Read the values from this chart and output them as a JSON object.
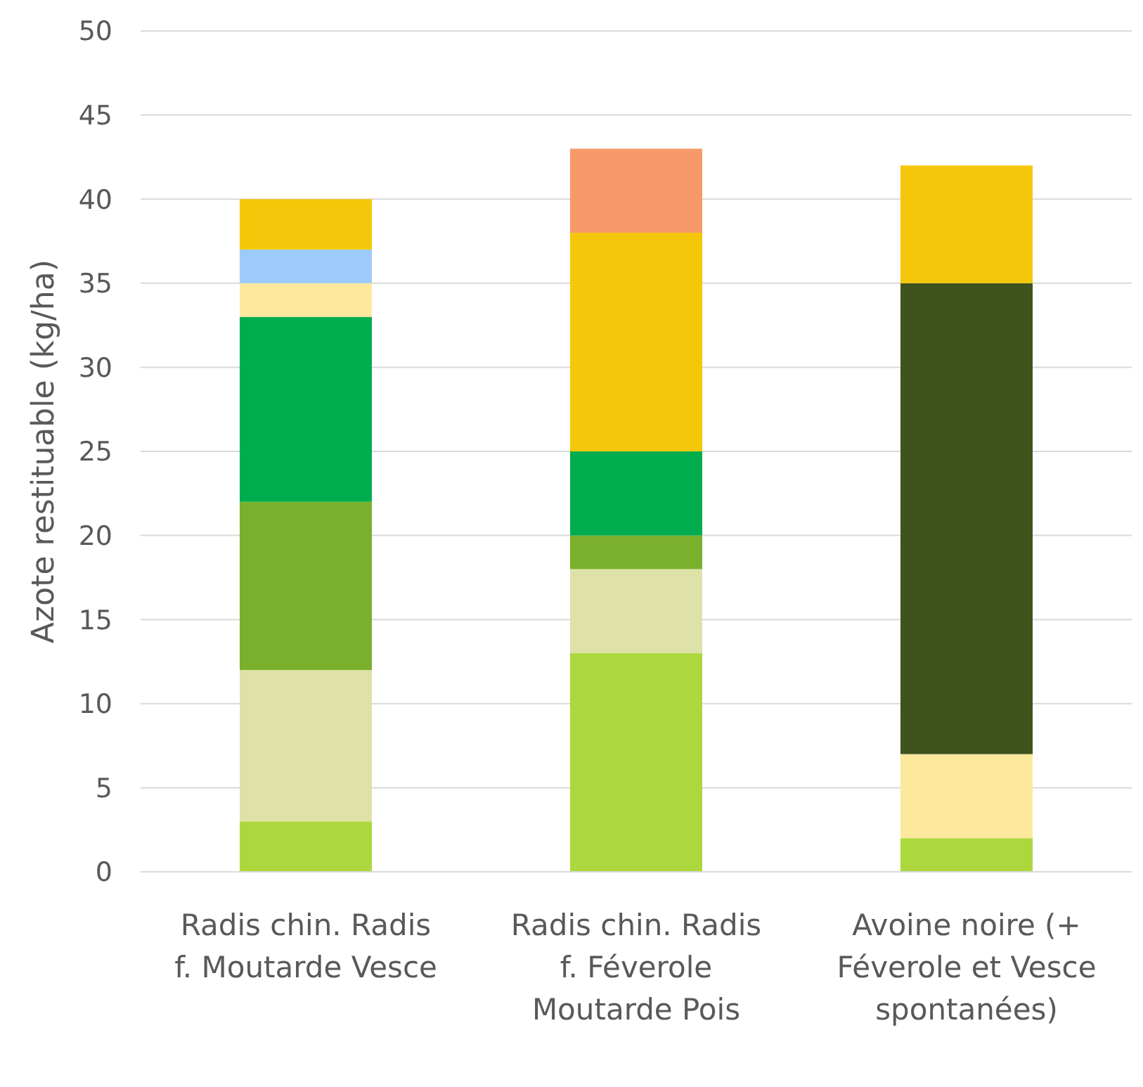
{
  "chart_data": {
    "type": "bar",
    "stacked": true,
    "ylabel": "Azote restituable (kg/ha)",
    "categories": [
      "Radis chin. Radis f. Moutarde Vesce",
      "Radis chin. Radis f. Féverole Moutarde Pois",
      "Avoine noire (+ Féverole et Vesce spontanées)"
    ],
    "series": [
      {
        "color": "#acd83e",
        "values": [
          3,
          13,
          2
        ]
      },
      {
        "color": "#dfe2a8",
        "values": [
          9,
          5,
          null
        ]
      },
      {
        "color": "#7ab02c",
        "values": [
          10,
          2,
          null
        ]
      },
      {
        "color": "#00ad4e",
        "values": [
          11,
          5,
          null
        ]
      },
      {
        "color": "#fde99c",
        "values": [
          2,
          null,
          5
        ]
      },
      {
        "color": "#3f531d",
        "values": [
          null,
          null,
          28
        ]
      },
      {
        "color": "#9ccbfa",
        "values": [
          2,
          null,
          null
        ]
      },
      {
        "color": "#f5c70a",
        "values": [
          3,
          13,
          7
        ]
      },
      {
        "color": "#f79a6a",
        "values": [
          null,
          5,
          null
        ]
      }
    ],
    "ylim": [
      0,
      50
    ],
    "yticks": [
      0,
      5,
      10,
      15,
      20,
      25,
      30,
      35,
      40,
      45,
      50
    ],
    "grid": "y"
  }
}
